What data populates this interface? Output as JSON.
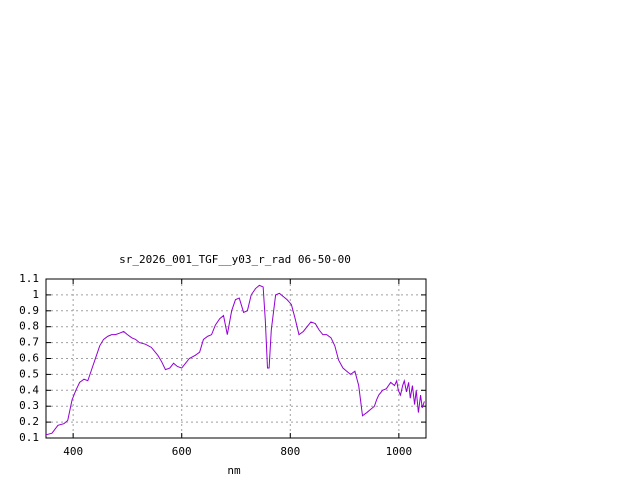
{
  "chart_data": {
    "type": "line",
    "title": "sr_2026_001_TGF__y03_r_rad 06-50-00",
    "x_label": "nm",
    "xlim": [
      350,
      1050
    ],
    "ylim": [
      0.1,
      1.1
    ],
    "xticks": [
      400,
      600,
      800,
      1000
    ],
    "yticks": [
      0.1,
      0.2,
      0.3,
      0.4,
      0.5,
      0.6,
      0.7,
      0.8,
      0.9,
      1,
      1.1
    ],
    "grid": true,
    "x": [
      350,
      361,
      372,
      383,
      390,
      398,
      405,
      412,
      420,
      427,
      434,
      442,
      449,
      456,
      464,
      471,
      478,
      486,
      493,
      500,
      508,
      515,
      522,
      533,
      544,
      556,
      563,
      570,
      578,
      585,
      592,
      600,
      607,
      614,
      625,
      633,
      640,
      648,
      655,
      662,
      670,
      677,
      684,
      692,
      699,
      706,
      714,
      721,
      728,
      736,
      743,
      750,
      754,
      758,
      761,
      765,
      773,
      780,
      787,
      794,
      802,
      809,
      816,
      824,
      831,
      838,
      846,
      853,
      860,
      867,
      875,
      882,
      889,
      897,
      904,
      911,
      919,
      926,
      933,
      941,
      948,
      955,
      959,
      963,
      970,
      977,
      985,
      992,
      996,
      999,
      1003,
      1007,
      1010,
      1014,
      1018,
      1021,
      1025,
      1029,
      1032,
      1036,
      1040,
      1043,
      1047
    ],
    "series": [
      {
        "color": "#9400d3",
        "values": [
          0.12,
          0.13,
          0.18,
          0.19,
          0.21,
          0.34,
          0.4,
          0.45,
          0.47,
          0.46,
          0.53,
          0.61,
          0.68,
          0.72,
          0.74,
          0.75,
          0.75,
          0.76,
          0.77,
          0.75,
          0.73,
          0.72,
          0.7,
          0.69,
          0.67,
          0.62,
          0.58,
          0.53,
          0.54,
          0.57,
          0.55,
          0.54,
          0.57,
          0.6,
          0.62,
          0.64,
          0.72,
          0.74,
          0.75,
          0.81,
          0.85,
          0.87,
          0.75,
          0.9,
          0.97,
          0.98,
          0.89,
          0.9,
          1.0,
          1.04,
          1.06,
          1.05,
          0.84,
          0.54,
          0.54,
          0.78,
          1.0,
          1.01,
          0.99,
          0.97,
          0.94,
          0.85,
          0.75,
          0.77,
          0.8,
          0.83,
          0.82,
          0.78,
          0.75,
          0.75,
          0.73,
          0.68,
          0.59,
          0.54,
          0.52,
          0.5,
          0.52,
          0.43,
          0.24,
          0.26,
          0.28,
          0.3,
          0.34,
          0.37,
          0.4,
          0.41,
          0.45,
          0.43,
          0.46,
          0.4,
          0.37,
          0.43,
          0.46,
          0.39,
          0.45,
          0.35,
          0.43,
          0.31,
          0.4,
          0.26,
          0.37,
          0.29,
          0.33
        ]
      }
    ]
  }
}
